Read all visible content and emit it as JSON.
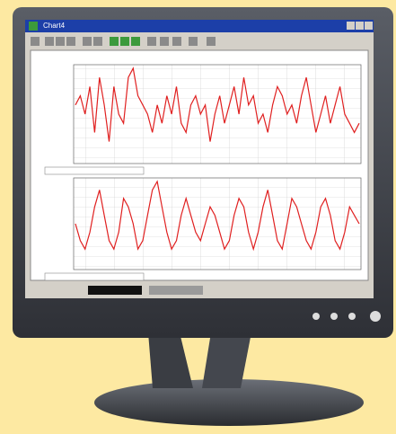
{
  "window": {
    "title": "Chart4"
  },
  "plots": [
    {
      "ylim": [
        0,
        10
      ],
      "color": "#e02020",
      "values": [
        6,
        7,
        5,
        8,
        3,
        9,
        6,
        2,
        8,
        5,
        4,
        9,
        10,
        7,
        6,
        5,
        3,
        6,
        4,
        7,
        5,
        8,
        4,
        3,
        6,
        7,
        5,
        6,
        2,
        5,
        7,
        4,
        6,
        8,
        5,
        9,
        6,
        7,
        4,
        5,
        3,
        6,
        8,
        7,
        5,
        6,
        4,
        7,
        9,
        6,
        3,
        5,
        7,
        4,
        6,
        8,
        5,
        4,
        3,
        4
      ]
    },
    {
      "ylim": [
        0,
        10
      ],
      "color": "#e02020",
      "values": [
        5,
        3,
        2,
        4,
        7,
        9,
        6,
        3,
        2,
        4,
        8,
        7,
        5,
        2,
        3,
        6,
        9,
        10,
        7,
        4,
        2,
        3,
        6,
        8,
        6,
        4,
        3,
        5,
        7,
        6,
        4,
        2,
        3,
        6,
        8,
        7,
        4,
        2,
        4,
        7,
        9,
        6,
        3,
        2,
        5,
        8,
        7,
        5,
        3,
        2,
        4,
        7,
        8,
        6,
        3,
        2,
        4,
        7,
        6,
        5
      ]
    }
  ]
}
